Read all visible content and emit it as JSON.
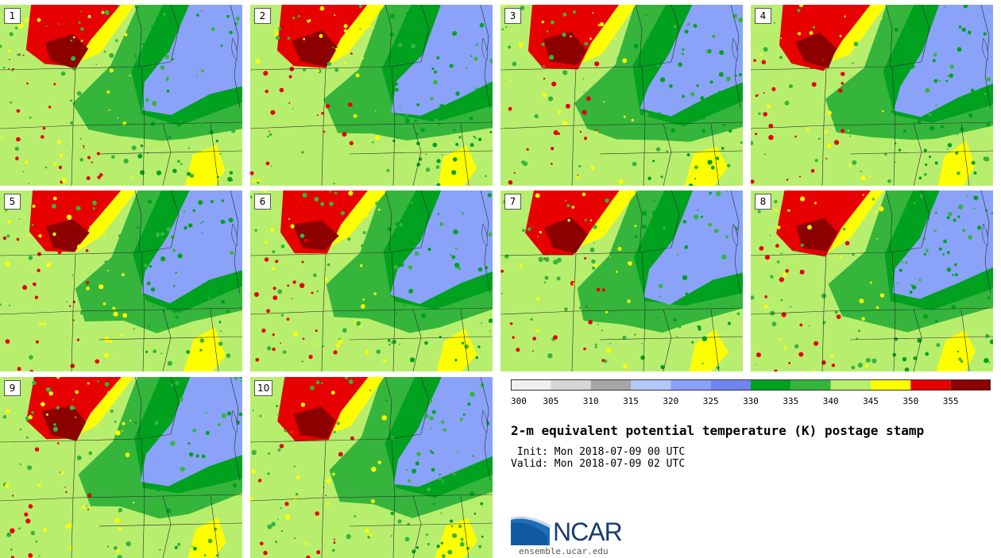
{
  "title": "2-m equivalent potential temperature (K) postage stamp",
  "init": " Init: Mon 2018-07-09 00 UTC",
  "valid": "Valid: Mon 2018-07-09 02 UTC",
  "logo_text": "NCAR",
  "website": "ensemble.ucar.edu",
  "members": [
    "1",
    "2",
    "3",
    "4",
    "5",
    "6",
    "7",
    "8",
    "9",
    "10"
  ],
  "colorbar": {
    "tick_labels": [
      "300",
      "305",
      "310",
      "315",
      "320",
      "325",
      "330",
      "335",
      "340",
      "345",
      "350",
      "355"
    ],
    "colors": [
      "#f0f0f0",
      "#d6d6d6",
      "#a6a6a6",
      "#b3c8fb",
      "#8aa2f8",
      "#6f86ee",
      "#00a11f",
      "#35b53c",
      "#b8ee6e",
      "#ffff00",
      "#e70000",
      "#8c0000"
    ]
  }
}
